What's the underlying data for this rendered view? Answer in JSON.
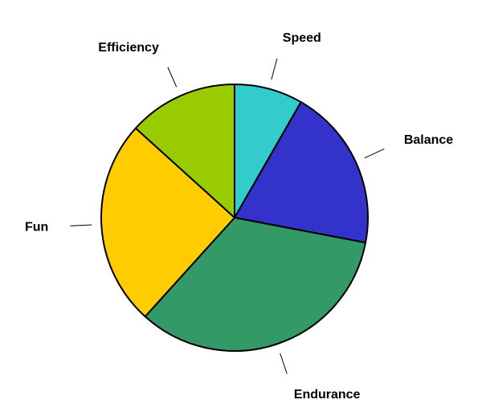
{
  "chart_data": {
    "type": "pie",
    "title": "",
    "slices": [
      {
        "label": "Speed",
        "value": 8.3,
        "color": "#33cccc"
      },
      {
        "label": "Balance",
        "value": 19.7,
        "color": "#3333cc"
      },
      {
        "label": "Endurance",
        "value": 33.7,
        "color": "#339966"
      },
      {
        "label": "Fun",
        "value": 25.0,
        "color": "#ffcc00"
      },
      {
        "label": "Efficiency",
        "value": 13.3,
        "color": "#99cc00"
      }
    ],
    "start_angle": "12 o'clock",
    "direction": "clockwise",
    "legend": "none"
  }
}
